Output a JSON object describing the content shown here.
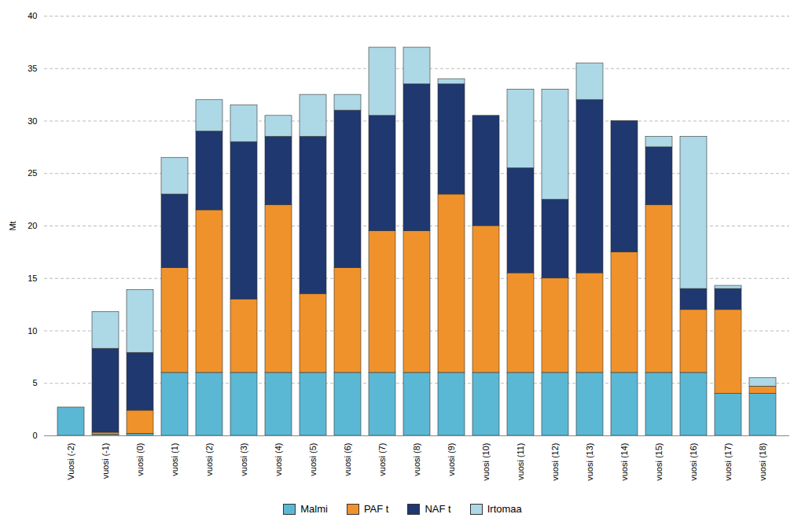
{
  "chart_data": {
    "type": "bar",
    "stacked": true,
    "ylabel": "Mt",
    "categories": [
      "Vuosi (-2)",
      "vuosi (-1)",
      "vuosi (0)",
      "vuosi (1)",
      "vuosi (2)",
      "vuosi (3)",
      "vuosi (4)",
      "vuosi (5)",
      "vuosi (6)",
      "vuosi (7)",
      "vuosi (8)",
      "vuosi (9)",
      "vuosi (10)",
      "vuosi (11)",
      "vuosi (12)",
      "vuosi (13)",
      "vuosi (14)",
      "vuosi (15)",
      "vuosi (16)",
      "vuosi (17)",
      "vuosi (18)"
    ],
    "series": [
      {
        "name": "Malmi",
        "color": "#5bb8d4",
        "values": [
          2.7,
          0.1,
          0.2,
          6.0,
          6.0,
          6.0,
          6.0,
          6.0,
          6.0,
          6.0,
          6.0,
          6.0,
          6.0,
          6.0,
          6.0,
          6.0,
          6.0,
          6.0,
          6.0,
          4.0,
          4.0
        ]
      },
      {
        "name": "PAF t",
        "color": "#f0922b",
        "values": [
          0.0,
          0.2,
          2.2,
          10.0,
          15.5,
          7.0,
          16.0,
          7.5,
          10.0,
          13.5,
          13.5,
          17.0,
          14.0,
          9.5,
          9.0,
          9.5,
          11.5,
          16.0,
          6.0,
          8.0,
          0.7
        ]
      },
      {
        "name": "NAF t",
        "color": "#1f3870",
        "values": [
          0.0,
          8.0,
          5.5,
          7.0,
          7.5,
          15.0,
          6.5,
          15.0,
          15.0,
          11.0,
          14.0,
          10.5,
          10.5,
          10.0,
          7.5,
          16.5,
          12.5,
          5.5,
          2.0,
          2.0,
          0.0
        ]
      },
      {
        "name": "Irtomaa",
        "color": "#add8e6",
        "values": [
          0.0,
          3.5,
          6.0,
          3.5,
          3.0,
          3.5,
          2.0,
          4.0,
          1.5,
          6.5,
          3.5,
          0.5,
          0.0,
          7.5,
          10.5,
          3.5,
          0.0,
          1.0,
          14.5,
          0.3,
          0.8
        ]
      }
    ],
    "ylim": [
      0,
      40
    ],
    "yticks": [
      0,
      5,
      10,
      15,
      20,
      25,
      30,
      35,
      40
    ],
    "grid": true,
    "legend": "bottom"
  }
}
